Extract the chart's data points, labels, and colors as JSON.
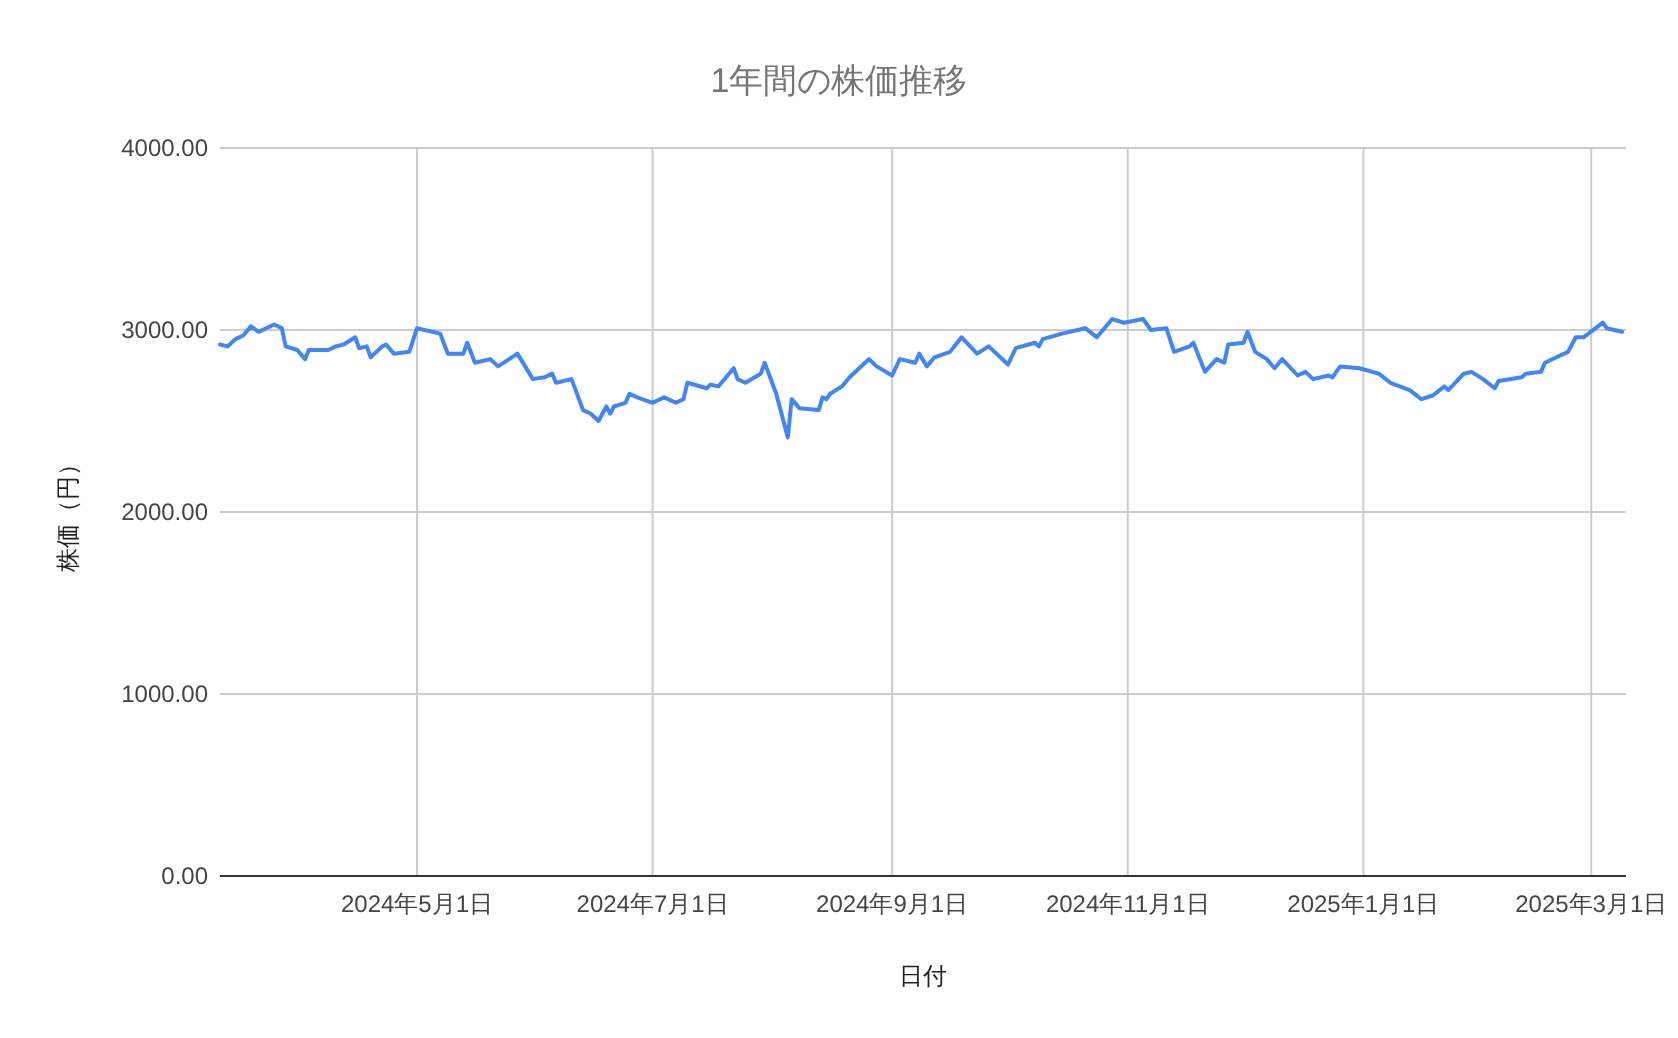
{
  "chart_data": {
    "type": "line",
    "title": "1年間の株価推移",
    "xlabel": "日付",
    "ylabel": "株価（円）",
    "x": [
      "2024-03-11",
      "2024-03-13",
      "2024-03-15",
      "2024-03-17",
      "2024-03-19",
      "2024-03-21",
      "2024-03-25",
      "2024-03-27",
      "2024-03-28",
      "2024-03-31",
      "2024-04-02",
      "2024-04-03",
      "2024-04-08",
      "2024-04-10",
      "2024-04-12",
      "2024-04-15",
      "2024-04-16",
      "2024-04-18",
      "2024-04-19",
      "2024-04-22",
      "2024-04-23",
      "2024-04-25",
      "2024-04-29",
      "2024-05-01",
      "2024-05-07",
      "2024-05-09",
      "2024-05-13",
      "2024-05-14",
      "2024-05-16",
      "2024-05-20",
      "2024-05-22",
      "2024-05-27",
      "2024-05-31",
      "2024-06-03",
      "2024-06-05",
      "2024-06-06",
      "2024-06-10",
      "2024-06-13",
      "2024-06-15",
      "2024-06-17",
      "2024-06-19",
      "2024-06-20",
      "2024-06-21",
      "2024-06-24",
      "2024-06-25",
      "2024-06-27",
      "2024-07-01",
      "2024-07-04",
      "2024-07-07",
      "2024-07-09",
      "2024-07-10",
      "2024-07-15",
      "2024-07-16",
      "2024-07-18",
      "2024-07-22",
      "2024-07-23",
      "2024-07-25",
      "2024-07-29",
      "2024-07-30",
      "2024-08-02",
      "2024-08-05",
      "2024-08-06",
      "2024-08-08",
      "2024-08-13",
      "2024-08-14",
      "2024-08-15",
      "2024-08-16",
      "2024-08-19",
      "2024-08-21",
      "2024-08-25",
      "2024-08-26",
      "2024-08-28",
      "2024-09-01",
      "2024-09-03",
      "2024-09-07",
      "2024-09-08",
      "2024-09-10",
      "2024-09-12",
      "2024-09-16",
      "2024-09-19",
      "2024-09-23",
      "2024-09-26",
      "2024-09-29",
      "2024-10-01",
      "2024-10-03",
      "2024-10-08",
      "2024-10-09",
      "2024-10-10",
      "2024-10-15",
      "2024-10-21",
      "2024-10-24",
      "2024-10-28",
      "2024-10-31",
      "2024-11-05",
      "2024-11-07",
      "2024-11-11",
      "2024-11-13",
      "2024-11-17",
      "2024-11-18",
      "2024-11-21",
      "2024-11-24",
      "2024-11-26",
      "2024-11-27",
      "2024-12-01",
      "2024-12-02",
      "2024-12-04",
      "2024-12-07",
      "2024-12-09",
      "2024-12-11",
      "2024-12-15",
      "2024-12-17",
      "2024-12-19",
      "2024-12-23",
      "2024-12-24",
      "2024-12-26",
      "2024-12-31",
      "2025-01-05",
      "2025-01-08",
      "2025-01-13",
      "2025-01-16",
      "2025-01-19",
      "2025-01-22",
      "2025-01-23",
      "2025-01-27",
      "2025-01-29",
      "2025-02-01",
      "2025-02-04",
      "2025-02-05",
      "2025-02-11",
      "2025-02-12",
      "2025-02-16",
      "2025-02-17",
      "2025-02-20",
      "2025-02-23",
      "2025-02-25",
      "2025-02-27",
      "2025-03-04",
      "2025-03-05",
      "2025-03-09"
    ],
    "values": [
      2920,
      2910,
      2950,
      2970,
      3020,
      2990,
      3030,
      3010,
      2910,
      2890,
      2840,
      2890,
      2890,
      2910,
      2920,
      2960,
      2900,
      2910,
      2850,
      2910,
      2920,
      2870,
      2880,
      3010,
      2980,
      2870,
      2870,
      2930,
      2820,
      2840,
      2800,
      2870,
      2730,
      2740,
      2760,
      2710,
      2730,
      2560,
      2540,
      2500,
      2580,
      2540,
      2580,
      2600,
      2650,
      2630,
      2600,
      2630,
      2600,
      2620,
      2710,
      2680,
      2700,
      2690,
      2790,
      2730,
      2710,
      2760,
      2820,
      2650,
      2410,
      2620,
      2570,
      2560,
      2630,
      2620,
      2650,
      2690,
      2740,
      2820,
      2840,
      2800,
      2750,
      2840,
      2820,
      2870,
      2800,
      2850,
      2880,
      2960,
      2870,
      2910,
      2850,
      2810,
      2900,
      2930,
      2910,
      2950,
      2980,
      3010,
      2960,
      3060,
      3040,
      3060,
      3000,
      3010,
      2880,
      2910,
      2930,
      2770,
      2840,
      2820,
      2920,
      2930,
      2990,
      2880,
      2840,
      2790,
      2840,
      2750,
      2770,
      2730,
      2750,
      2740,
      2800,
      2790,
      2760,
      2710,
      2670,
      2620,
      2640,
      2690,
      2670,
      2760,
      2770,
      2730,
      2680,
      2720,
      2740,
      2760,
      2770,
      2820,
      2850,
      2880,
      2960,
      2960,
      3040,
      3010,
      2990
    ],
    "color": "#4285f4",
    "line_style": "solid",
    "marker": "none",
    "xlim": [
      "2024-03-11",
      "2025-03-10"
    ],
    "xticks": [
      {
        "value": "2024-05-01",
        "label": "2024年5月1日"
      },
      {
        "value": "2024-07-01",
        "label": "2024年7月1日"
      },
      {
        "value": "2024-09-01",
        "label": "2024年9月1日"
      },
      {
        "value": "2024-11-01",
        "label": "2024年11月1日"
      },
      {
        "value": "2025-01-01",
        "label": "2025年1月1日"
      },
      {
        "value": "2025-03-01",
        "label": "2025年3月1日"
      }
    ],
    "ylim": [
      0,
      4000
    ],
    "yticks": [
      {
        "value": 0,
        "label": "0.00"
      },
      {
        "value": 1000,
        "label": "1000.00"
      },
      {
        "value": 2000,
        "label": "2000.00"
      },
      {
        "value": 3000,
        "label": "3000.00"
      },
      {
        "value": 4000,
        "label": "4000.00"
      }
    ],
    "grid": true
  }
}
